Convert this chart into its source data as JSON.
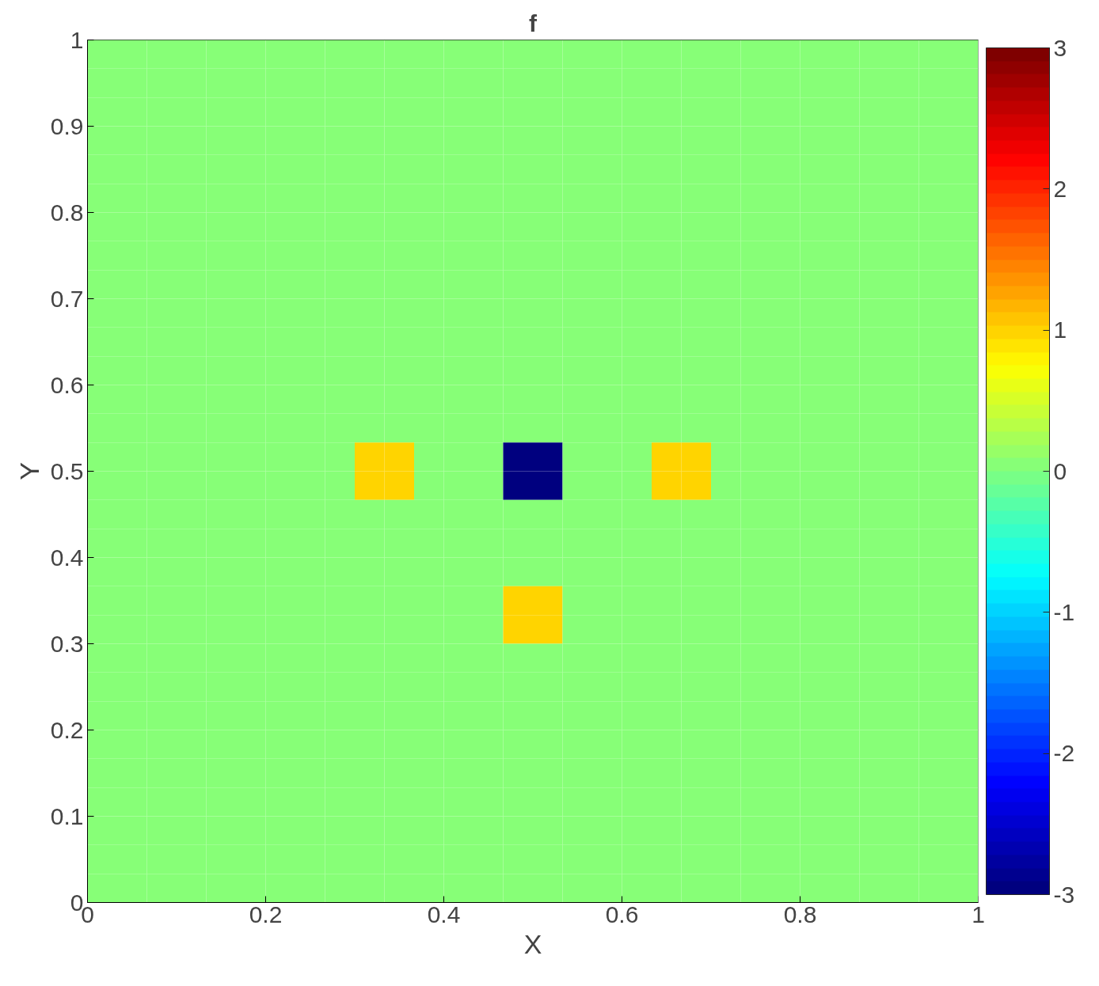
{
  "chart_data": {
    "type": "heatmap",
    "title": "f",
    "xlabel": "X",
    "ylabel": "Y",
    "xlim": [
      0,
      1
    ],
    "ylim": [
      0,
      1
    ],
    "xticks": [
      0,
      0.2,
      0.4,
      0.6,
      0.8,
      1
    ],
    "yticks": [
      0,
      0.1,
      0.2,
      0.3,
      0.4,
      0.5,
      0.6,
      0.7,
      0.8,
      0.9,
      1
    ],
    "clim": [
      -3,
      3
    ],
    "cticks": [
      -3,
      -2,
      -1,
      0,
      1,
      2,
      3
    ],
    "grid": false,
    "cells": [
      [
        0,
        0,
        0,
        0,
        0,
        0,
        0,
        0,
        0,
        0,
        0,
        0,
        0,
        0,
        0,
        0,
        0,
        0,
        0,
        0,
        0,
        0,
        0,
        0,
        0,
        0,
        0,
        0,
        0,
        0
      ],
      [
        0,
        0,
        0,
        0,
        0,
        0,
        0,
        0,
        0,
        0,
        0,
        0,
        0,
        0,
        0,
        0,
        0,
        0,
        0,
        0,
        0,
        0,
        0,
        0,
        0,
        0,
        0,
        0,
        0,
        0
      ],
      [
        0,
        0,
        0,
        0,
        0,
        0,
        0,
        0,
        0,
        0,
        0,
        0,
        0,
        0,
        0,
        0,
        0,
        0,
        0,
        0,
        0,
        0,
        0,
        0,
        0,
        0,
        0,
        0,
        0,
        0
      ],
      [
        0,
        0,
        0,
        0,
        0,
        0,
        0,
        0,
        0,
        0,
        0,
        0,
        0,
        0,
        0,
        0,
        0,
        0,
        0,
        0,
        0,
        0,
        0,
        0,
        0,
        0,
        0,
        0,
        0,
        0
      ],
      [
        0,
        0,
        0,
        0,
        0,
        0,
        0,
        0,
        0,
        0,
        0,
        0,
        0,
        0,
        0,
        0,
        0,
        0,
        0,
        0,
        0,
        0,
        0,
        0,
        0,
        0,
        0,
        0,
        0,
        0
      ],
      [
        0,
        0,
        0,
        0,
        0,
        0,
        0,
        0,
        0,
        0,
        0,
        0,
        0,
        0,
        0,
        0,
        0,
        0,
        0,
        0,
        0,
        0,
        0,
        0,
        0,
        0,
        0,
        0,
        0,
        0
      ],
      [
        0,
        0,
        0,
        0,
        0,
        0,
        0,
        0,
        0,
        0,
        0,
        0,
        0,
        0,
        0,
        0,
        0,
        0,
        0,
        0,
        0,
        0,
        0,
        0,
        0,
        0,
        0,
        0,
        0,
        0
      ],
      [
        0,
        0,
        0,
        0,
        0,
        0,
        0,
        0,
        0,
        0,
        0,
        0,
        0,
        0,
        0,
        0,
        0,
        0,
        0,
        0,
        0,
        0,
        0,
        0,
        0,
        0,
        0,
        0,
        0,
        0
      ],
      [
        0,
        0,
        0,
        0,
        0,
        0,
        0,
        0,
        0,
        0,
        0,
        0,
        0,
        0,
        0,
        0,
        0,
        0,
        0,
        0,
        0,
        0,
        0,
        0,
        0,
        0,
        0,
        0,
        0,
        0
      ],
      [
        0,
        0,
        0,
        0,
        0,
        0,
        0,
        0,
        0,
        0,
        0,
        0,
        0,
        0,
        0,
        0,
        0,
        0,
        0,
        0,
        0,
        0,
        0,
        0,
        0,
        0,
        0,
        0,
        0,
        0
      ],
      [
        0,
        0,
        0,
        0,
        0,
        0,
        0,
        0,
        0,
        0,
        0,
        0,
        0,
        0,
        0,
        0,
        0,
        0,
        0,
        0,
        0,
        0,
        0,
        0,
        0,
        0,
        0,
        0,
        0,
        0
      ],
      [
        0,
        0,
        0,
        0,
        0,
        0,
        0,
        0,
        0,
        0,
        0,
        0,
        0,
        0,
        0,
        0,
        0,
        0,
        0,
        0,
        0,
        0,
        0,
        0,
        0,
        0,
        0,
        0,
        0,
        0
      ],
      [
        0,
        0,
        0,
        0,
        0,
        0,
        0,
        0,
        0,
        0,
        0,
        0,
        0,
        0,
        0,
        0,
        0,
        0,
        0,
        0,
        0,
        0,
        0,
        0,
        0,
        0,
        0,
        0,
        0,
        0
      ],
      [
        0,
        0,
        0,
        0,
        0,
        0,
        0,
        0,
        0,
        0,
        0,
        0,
        0,
        0,
        0,
        0,
        0,
        0,
        0,
        0,
        0,
        0,
        0,
        0,
        0,
        0,
        0,
        0,
        0,
        0
      ],
      [
        0,
        0,
        0,
        0,
        0,
        0,
        0,
        0,
        0,
        1,
        1,
        0,
        0,
        0,
        -3,
        -3,
        0,
        0,
        0,
        1,
        1,
        0,
        0,
        0,
        0,
        0,
        0,
        0,
        0,
        0
      ],
      [
        0,
        0,
        0,
        0,
        0,
        0,
        0,
        0,
        0,
        1,
        1,
        0,
        0,
        0,
        -3,
        -3,
        0,
        0,
        0,
        1,
        1,
        0,
        0,
        0,
        0,
        0,
        0,
        0,
        0,
        0
      ],
      [
        0,
        0,
        0,
        0,
        0,
        0,
        0,
        0,
        0,
        0,
        0,
        0,
        0,
        0,
        0,
        0,
        0,
        0,
        0,
        0,
        0,
        0,
        0,
        0,
        0,
        0,
        0,
        0,
        0,
        0
      ],
      [
        0,
        0,
        0,
        0,
        0,
        0,
        0,
        0,
        0,
        0,
        0,
        0,
        0,
        0,
        0,
        0,
        0,
        0,
        0,
        0,
        0,
        0,
        0,
        0,
        0,
        0,
        0,
        0,
        0,
        0
      ],
      [
        0,
        0,
        0,
        0,
        0,
        0,
        0,
        0,
        0,
        0,
        0,
        0,
        0,
        0,
        0,
        0,
        0,
        0,
        0,
        0,
        0,
        0,
        0,
        0,
        0,
        0,
        0,
        0,
        0,
        0
      ],
      [
        0,
        0,
        0,
        0,
        0,
        0,
        0,
        0,
        0,
        0,
        0,
        0,
        0,
        0,
        1,
        1,
        0,
        0,
        0,
        0,
        0,
        0,
        0,
        0,
        0,
        0,
        0,
        0,
        0,
        0
      ],
      [
        0,
        0,
        0,
        0,
        0,
        0,
        0,
        0,
        0,
        0,
        0,
        0,
        0,
        0,
        1,
        1,
        0,
        0,
        0,
        0,
        0,
        0,
        0,
        0,
        0,
        0,
        0,
        0,
        0,
        0
      ],
      [
        0,
        0,
        0,
        0,
        0,
        0,
        0,
        0,
        0,
        0,
        0,
        0,
        0,
        0,
        0,
        0,
        0,
        0,
        0,
        0,
        0,
        0,
        0,
        0,
        0,
        0,
        0,
        0,
        0,
        0
      ],
      [
        0,
        0,
        0,
        0,
        0,
        0,
        0,
        0,
        0,
        0,
        0,
        0,
        0,
        0,
        0,
        0,
        0,
        0,
        0,
        0,
        0,
        0,
        0,
        0,
        0,
        0,
        0,
        0,
        0,
        0
      ],
      [
        0,
        0,
        0,
        0,
        0,
        0,
        0,
        0,
        0,
        0,
        0,
        0,
        0,
        0,
        0,
        0,
        0,
        0,
        0,
        0,
        0,
        0,
        0,
        0,
        0,
        0,
        0,
        0,
        0,
        0
      ],
      [
        0,
        0,
        0,
        0,
        0,
        0,
        0,
        0,
        0,
        0,
        0,
        0,
        0,
        0,
        0,
        0,
        0,
        0,
        0,
        0,
        0,
        0,
        0,
        0,
        0,
        0,
        0,
        0,
        0,
        0
      ],
      [
        0,
        0,
        0,
        0,
        0,
        0,
        0,
        0,
        0,
        0,
        0,
        0,
        0,
        0,
        0,
        0,
        0,
        0,
        0,
        0,
        0,
        0,
        0,
        0,
        0,
        0,
        0,
        0,
        0,
        0
      ],
      [
        0,
        0,
        0,
        0,
        0,
        0,
        0,
        0,
        0,
        0,
        0,
        0,
        0,
        0,
        0,
        0,
        0,
        0,
        0,
        0,
        0,
        0,
        0,
        0,
        0,
        0,
        0,
        0,
        0,
        0
      ],
      [
        0,
        0,
        0,
        0,
        0,
        0,
        0,
        0,
        0,
        0,
        0,
        0,
        0,
        0,
        0,
        0,
        0,
        0,
        0,
        0,
        0,
        0,
        0,
        0,
        0,
        0,
        0,
        0,
        0,
        0
      ],
      [
        0,
        0,
        0,
        0,
        0,
        0,
        0,
        0,
        0,
        0,
        0,
        0,
        0,
        0,
        0,
        0,
        0,
        0,
        0,
        0,
        0,
        0,
        0,
        0,
        0,
        0,
        0,
        0,
        0,
        0
      ],
      [
        0,
        0,
        0,
        0,
        0,
        0,
        0,
        0,
        0,
        0,
        0,
        0,
        0,
        0,
        0,
        0,
        0,
        0,
        0,
        0,
        0,
        0,
        0,
        0,
        0,
        0,
        0,
        0,
        0,
        0
      ]
    ]
  }
}
